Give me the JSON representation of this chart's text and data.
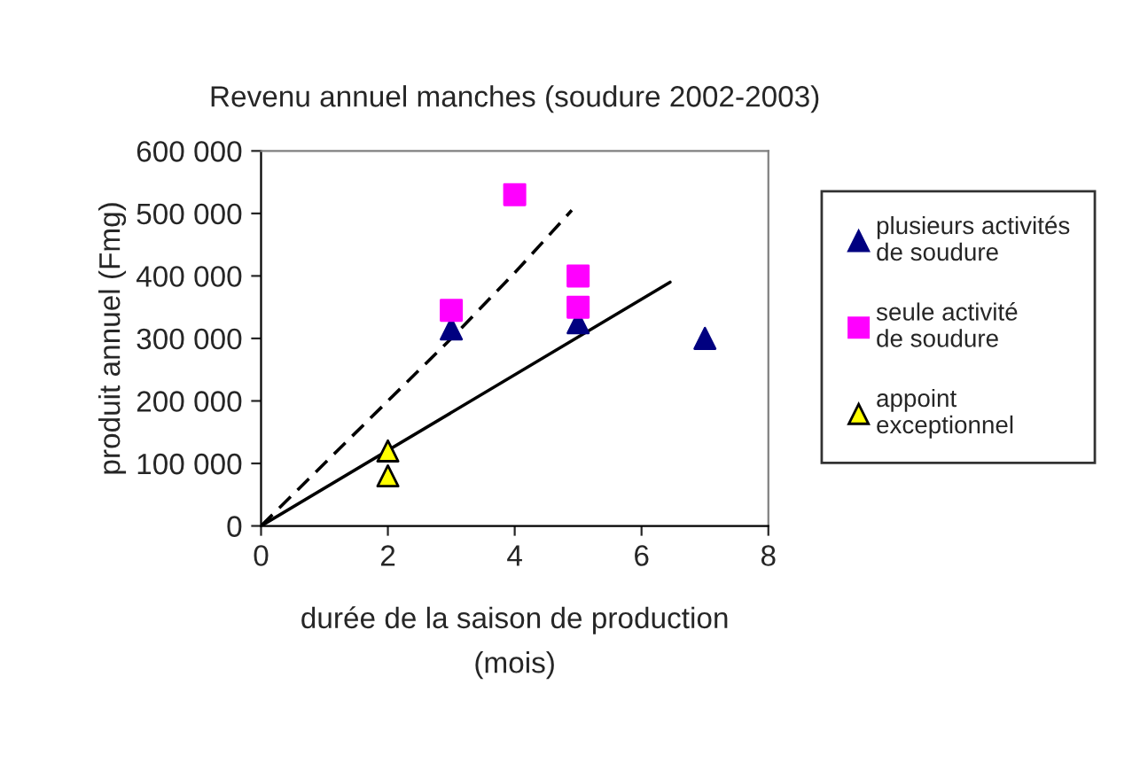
{
  "chart_data": {
    "type": "scatter",
    "title": "Revenu annuel manches (soudure 2002-2003)",
    "xlabel": "durée de la saison de production\n(mois)",
    "ylabel": "produit annuel (Fmg)",
    "xlim": [
      0,
      8
    ],
    "xticks": [
      0,
      2,
      4,
      6,
      8
    ],
    "ylim": [
      0,
      600000
    ],
    "yticks": [
      {
        "value": 0,
        "label": "0"
      },
      {
        "value": 100000,
        "label": "100 000"
      },
      {
        "value": 200000,
        "label": "200 000"
      },
      {
        "value": 300000,
        "label": "300 000"
      },
      {
        "value": 400000,
        "label": "400 000"
      },
      {
        "value": 500000,
        "label": "500 000"
      },
      {
        "value": 600000,
        "label": "600 000"
      }
    ],
    "grid": false,
    "legend": "right",
    "series": [
      {
        "name": "plusieurs activités de soudure",
        "color": "#000080",
        "marker": "triangle",
        "x": [
          3,
          5,
          7
        ],
        "values": [
          315000,
          325000,
          300000
        ]
      },
      {
        "name": "seule activité de soudure",
        "color": "#ff00ff",
        "marker": "square",
        "x": [
          3,
          4,
          5,
          5
        ],
        "values": [
          345000,
          530000,
          400000,
          350000
        ]
      },
      {
        "name": "appoint exceptionnel",
        "color": "#ffff00",
        "marker": "triangle",
        "x": [
          2,
          2
        ],
        "values": [
          120000,
          80000
        ]
      },
      {
        "type": "line",
        "color": "#000000",
        "line_style": "dashed",
        "marker": "none",
        "x": [
          0,
          2,
          3,
          4,
          4.9
        ],
        "values": [
          0,
          200000,
          300000,
          405000,
          505000
        ]
      },
      {
        "type": "line",
        "color": "#000000",
        "line_style": "solid",
        "marker": "none",
        "x": [
          0,
          6.45
        ],
        "values": [
          0,
          390000
        ]
      }
    ]
  }
}
